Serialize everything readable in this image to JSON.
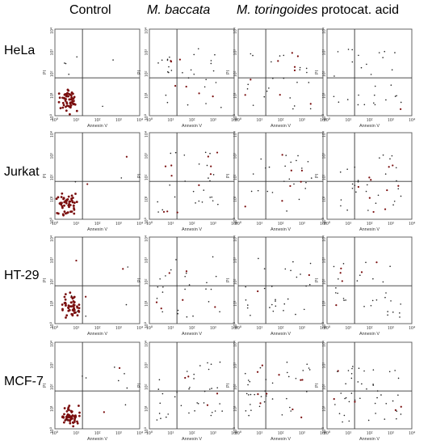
{
  "headers": {
    "control": "Control",
    "baccata": "M. baccata",
    "toringoides": "M. toringoides",
    "protocat": "protocat. acid"
  },
  "rows": [
    "HeLa",
    "Jurkat",
    "HT-29",
    "MCF-7"
  ],
  "axis": {
    "x_label": "Annexin V",
    "y_label": "PI",
    "tick_labels": [
      "10⁰",
      "10¹",
      "10²",
      "10³",
      "10⁴"
    ]
  },
  "colors": {
    "dot": "#7a0e0e",
    "dark_dot": "#222222",
    "frame": "#555555"
  },
  "chart_data": {
    "type": "scatter",
    "x_log_range": [
      0,
      4
    ],
    "y_log_range": [
      0,
      4
    ],
    "quadrant_gate": {
      "x": 1.3,
      "y": 1.75
    },
    "columns": [
      "Control",
      "M. baccata",
      "M. toringoides",
      "protocat. acid"
    ],
    "rows": [
      "HeLa",
      "Jurkat",
      "HT-29",
      "MCF-7"
    ],
    "panels": [
      {
        "row": "HeLa",
        "col": "Control",
        "seed": 11,
        "cluster_n": 60,
        "cluster_center": [
          0.65,
          0.72
        ],
        "scatter_n": 6
      },
      {
        "row": "HeLa",
        "col": "M. baccata",
        "seed": 12,
        "cluster_n": 0,
        "cluster_center": [
          0,
          0
        ],
        "scatter_n": 34
      },
      {
        "row": "HeLa",
        "col": "M. toringoides",
        "seed": 13,
        "cluster_n": 0,
        "cluster_center": [
          0,
          0
        ],
        "scatter_n": 32
      },
      {
        "row": "HeLa",
        "col": "protocat. acid",
        "seed": 14,
        "cluster_n": 0,
        "cluster_center": [
          0,
          0
        ],
        "scatter_n": 30
      },
      {
        "row": "Jurkat",
        "col": "Control",
        "seed": 21,
        "cluster_n": 55,
        "cluster_center": [
          0.6,
          0.65
        ],
        "scatter_n": 4
      },
      {
        "row": "Jurkat",
        "col": "M. baccata",
        "seed": 22,
        "cluster_n": 0,
        "cluster_center": [
          0,
          0
        ],
        "scatter_n": 36
      },
      {
        "row": "Jurkat",
        "col": "M. toringoides",
        "seed": 23,
        "cluster_n": 0,
        "cluster_center": [
          0,
          0
        ],
        "scatter_n": 30
      },
      {
        "row": "Jurkat",
        "col": "protocat. acid",
        "seed": 24,
        "cluster_n": 0,
        "cluster_center": [
          0,
          0
        ],
        "scatter_n": 38
      },
      {
        "row": "HT-29",
        "col": "Control",
        "seed": 31,
        "cluster_n": 50,
        "cluster_center": [
          0.75,
          0.85
        ],
        "scatter_n": 8
      },
      {
        "row": "HT-29",
        "col": "M. baccata",
        "seed": 32,
        "cluster_n": 0,
        "cluster_center": [
          0,
          0
        ],
        "scatter_n": 30
      },
      {
        "row": "HT-29",
        "col": "M. toringoides",
        "seed": 33,
        "cluster_n": 0,
        "cluster_center": [
          0,
          0
        ],
        "scatter_n": 30
      },
      {
        "row": "HT-29",
        "col": "protocat. acid",
        "seed": 34,
        "cluster_n": 0,
        "cluster_center": [
          0,
          0
        ],
        "scatter_n": 34
      },
      {
        "row": "MCF-7",
        "col": "Control",
        "seed": 41,
        "cluster_n": 55,
        "cluster_center": [
          0.7,
          0.55
        ],
        "scatter_n": 10
      },
      {
        "row": "MCF-7",
        "col": "M. baccata",
        "seed": 42,
        "cluster_n": 0,
        "cluster_center": [
          0,
          0
        ],
        "scatter_n": 40
      },
      {
        "row": "MCF-7",
        "col": "M. toringoides",
        "seed": 43,
        "cluster_n": 0,
        "cluster_center": [
          0,
          0
        ],
        "scatter_n": 44
      },
      {
        "row": "MCF-7",
        "col": "protocat. acid",
        "seed": 44,
        "cluster_n": 0,
        "cluster_center": [
          0,
          0
        ],
        "scatter_n": 48
      }
    ]
  }
}
